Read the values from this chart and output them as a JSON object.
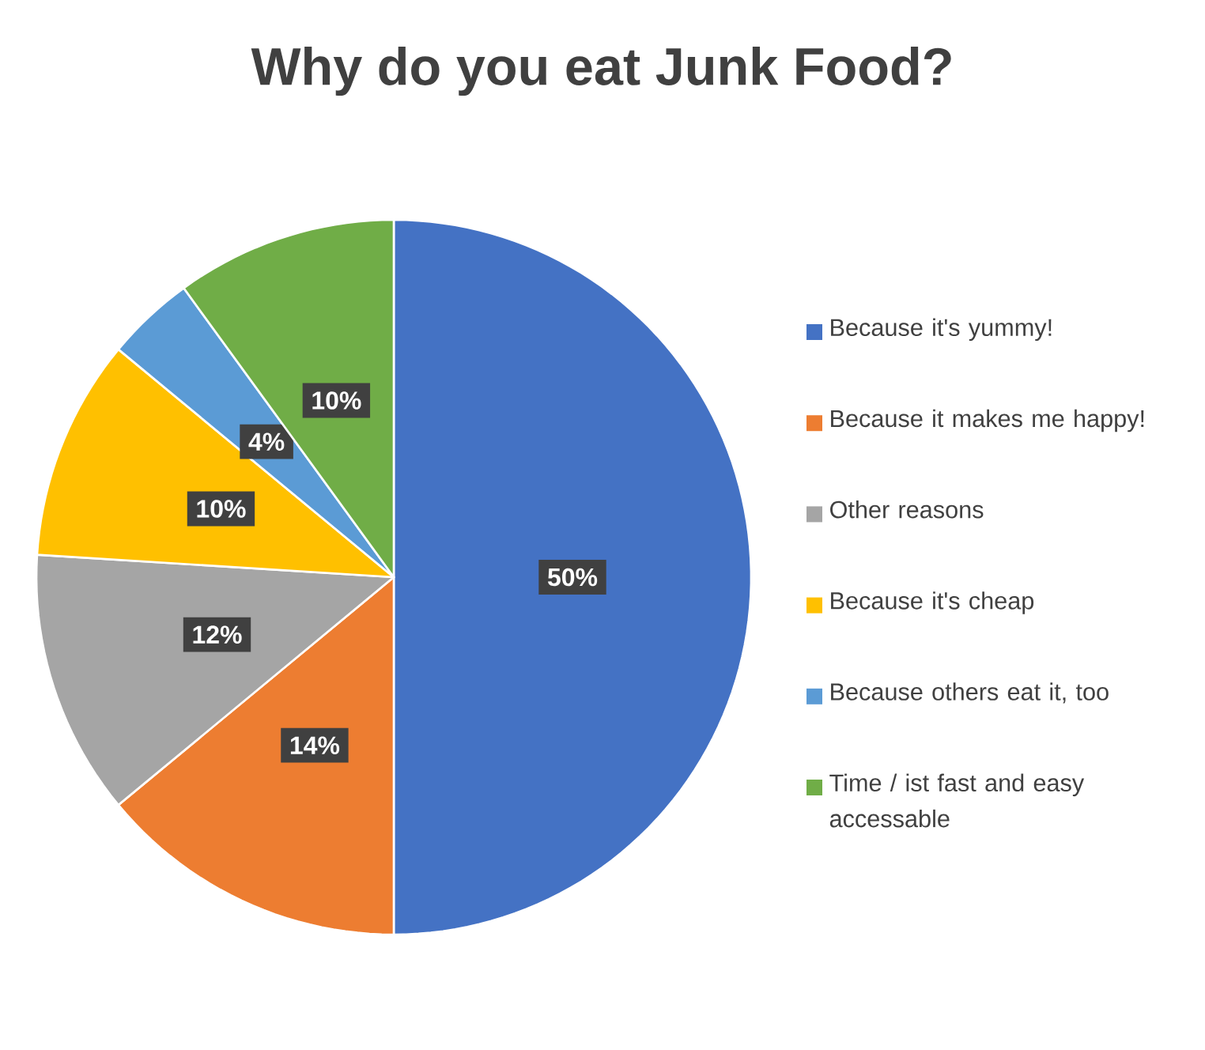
{
  "chart_data": {
    "type": "pie",
    "title": "Why do you eat Junk Food?",
    "categories": [
      "Because it's yummy!",
      "Because it makes me happy!",
      "Other reasons",
      "Because it's cheap",
      "Because others eat it, too",
      "Time / ist fast and easy accessable"
    ],
    "values": [
      50,
      14,
      12,
      10,
      4,
      10
    ],
    "colors": [
      "#4472c4",
      "#ed7d31",
      "#a5a5a5",
      "#ffc000",
      "#5b9bd5",
      "#70ad47"
    ],
    "value_labels": [
      "50%",
      "14%",
      "12%",
      "10%",
      "4%",
      "10%"
    ],
    "legend": "right"
  }
}
